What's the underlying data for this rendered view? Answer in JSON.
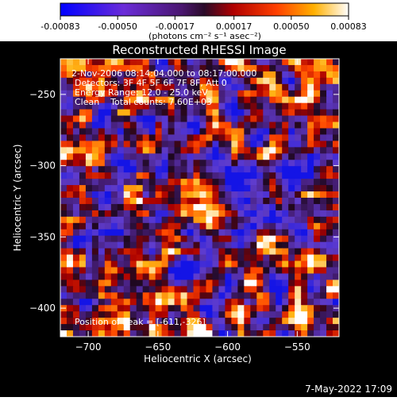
{
  "colorbar": {
    "ticks": [
      "-0.00083",
      "-0.00050",
      "-0.00017",
      "0.00017",
      "0.00050",
      "0.00083"
    ],
    "tick_values": [
      -0.00083,
      -0.0005,
      -0.00017,
      0.00017,
      0.0005,
      0.00083
    ],
    "range": [
      -0.00083,
      0.00083
    ],
    "unit_label": "(photons cm⁻² s⁻¹ asec⁻²)",
    "colormap": "blue-purple-red-yellow-white"
  },
  "info": {
    "line1": "2-Nov-2006 08:14:04.000 to 08:17:00.000",
    "line2": "Detectors: 3F 4F 5F 6F 7F 8F, Att 0",
    "line3": "Energy Range: 12.0 - 25.0 keV",
    "line4": "Clean    Total counts: 7.60E+03",
    "peak": "Position of Peak = [-611,-326]"
  },
  "footer": {
    "timestamp": "7-May-2022 17:09"
  },
  "chart_data": {
    "type": "heatmap",
    "title": "Reconstructed RHESSI Image",
    "xlabel": "Heliocentric X (arcsec)",
    "ylabel": "Heliocentric Y (arcsec)",
    "xlim": [
      -720,
      -520
    ],
    "ylim": [
      -420,
      -225
    ],
    "x_ticks": [
      -700,
      -650,
      -600,
      -550
    ],
    "y_ticks": [
      -250,
      -300,
      -350,
      -400
    ],
    "peak_position": [
      -611,
      -326
    ],
    "colors": {
      "background": "#000000",
      "text": "#ffffff",
      "axis": "#ffffff"
    }
  }
}
